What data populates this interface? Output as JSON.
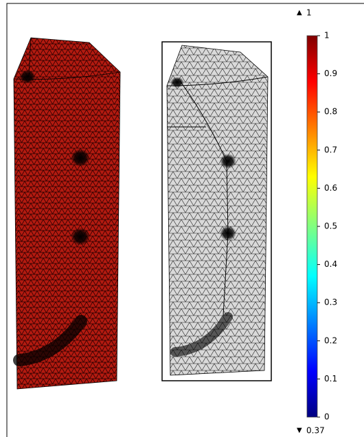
{
  "colorbar": {
    "max": 1,
    "min": 0.37,
    "range": [
      0,
      1
    ],
    "ticks": [
      0,
      0.1,
      0.2,
      0.3,
      0.4,
      0.5,
      0.6,
      0.7,
      0.8,
      0.9,
      1
    ]
  }
}
